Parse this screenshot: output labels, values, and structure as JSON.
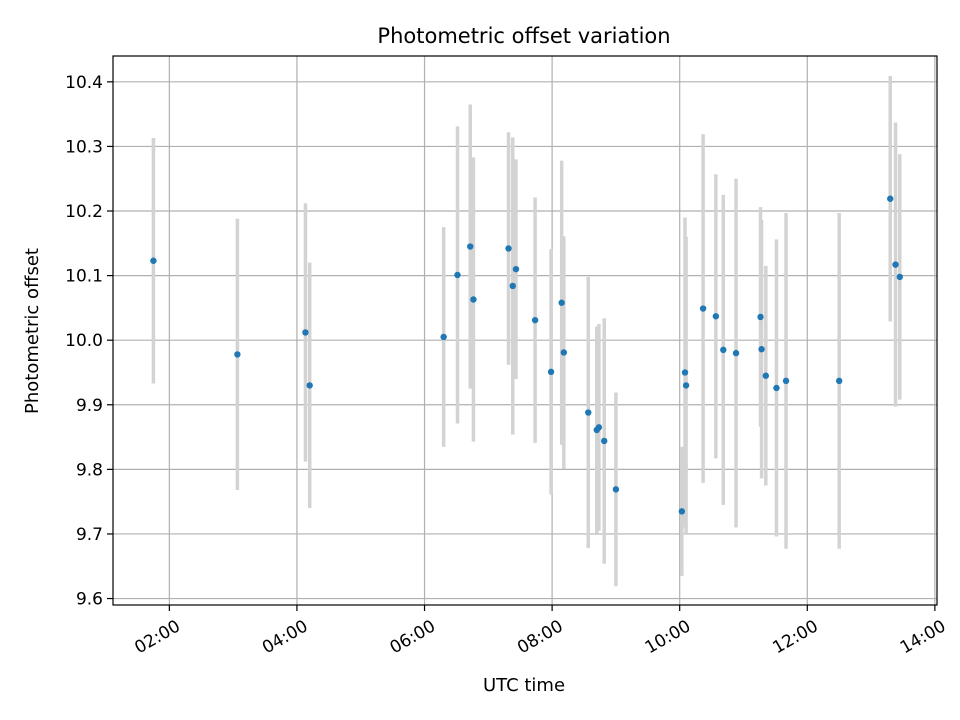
{
  "chart_data": {
    "type": "scatter",
    "title": "Photometric offset variation",
    "xlabel": "UTC time",
    "ylabel": "Photometric offset",
    "xlim": [
      "01:07",
      "14:02"
    ],
    "ylim": [
      9.59,
      10.44
    ],
    "x_ticks": [
      "02:00",
      "04:00",
      "06:00",
      "08:00",
      "10:00",
      "12:00",
      "14:00"
    ],
    "y_ticks": [
      "9.6",
      "9.7",
      "9.8",
      "9.9",
      "10.0",
      "10.1",
      "10.2",
      "10.3",
      "10.4"
    ],
    "grid": true,
    "point_color": "#1f77b4",
    "errorbar_color": "#d3d3d3",
    "points": [
      {
        "x": "01:45",
        "y": 10.123,
        "err": 0.19
      },
      {
        "x": "03:04",
        "y": 9.978,
        "err": 0.21
      },
      {
        "x": "04:08",
        "y": 10.012,
        "err": 0.2
      },
      {
        "x": "04:12",
        "y": 9.93,
        "err": 0.19
      },
      {
        "x": "06:18",
        "y": 10.005,
        "err": 0.17
      },
      {
        "x": "06:31",
        "y": 10.101,
        "err": 0.23
      },
      {
        "x": "06:43",
        "y": 10.145,
        "err": 0.22
      },
      {
        "x": "06:46",
        "y": 10.063,
        "err": 0.22
      },
      {
        "x": "07:19",
        "y": 10.142,
        "err": 0.18
      },
      {
        "x": "07:23",
        "y": 10.084,
        "err": 0.23
      },
      {
        "x": "07:26",
        "y": 10.11,
        "err": 0.17
      },
      {
        "x": "07:44",
        "y": 10.031,
        "err": 0.19
      },
      {
        "x": "07:59",
        "y": 9.951,
        "err": 0.19
      },
      {
        "x": "08:09",
        "y": 10.058,
        "err": 0.22
      },
      {
        "x": "08:11",
        "y": 9.981,
        "err": 0.18
      },
      {
        "x": "08:34",
        "y": 9.888,
        "err": 0.21
      },
      {
        "x": "08:42",
        "y": 9.861,
        "err": 0.16
      },
      {
        "x": "08:44",
        "y": 9.865,
        "err": 0.16
      },
      {
        "x": "08:49",
        "y": 9.844,
        "err": 0.19
      },
      {
        "x": "09:00",
        "y": 9.769,
        "err": 0.15
      },
      {
        "x": "10:02",
        "y": 9.735,
        "err": 0.1
      },
      {
        "x": "10:05",
        "y": 9.95,
        "err": 0.24
      },
      {
        "x": "10:06",
        "y": 9.93,
        "err": 0.23
      },
      {
        "x": "10:22",
        "y": 10.049,
        "err": 0.27
      },
      {
        "x": "10:34",
        "y": 10.037,
        "err": 0.22
      },
      {
        "x": "10:41",
        "y": 9.985,
        "err": 0.24
      },
      {
        "x": "10:53",
        "y": 9.98,
        "err": 0.27
      },
      {
        "x": "11:16",
        "y": 10.036,
        "err": 0.17
      },
      {
        "x": "11:17",
        "y": 9.986,
        "err": 0.2
      },
      {
        "x": "11:21",
        "y": 9.945,
        "err": 0.17
      },
      {
        "x": "11:31",
        "y": 9.926,
        "err": 0.23
      },
      {
        "x": "11:40",
        "y": 9.937,
        "err": 0.26
      },
      {
        "x": "12:30",
        "y": 9.937,
        "err": 0.26
      },
      {
        "x": "13:18",
        "y": 10.219,
        "err": 0.19
      },
      {
        "x": "13:23",
        "y": 10.117,
        "err": 0.22
      },
      {
        "x": "13:27",
        "y": 10.098,
        "err": 0.19
      }
    ]
  }
}
